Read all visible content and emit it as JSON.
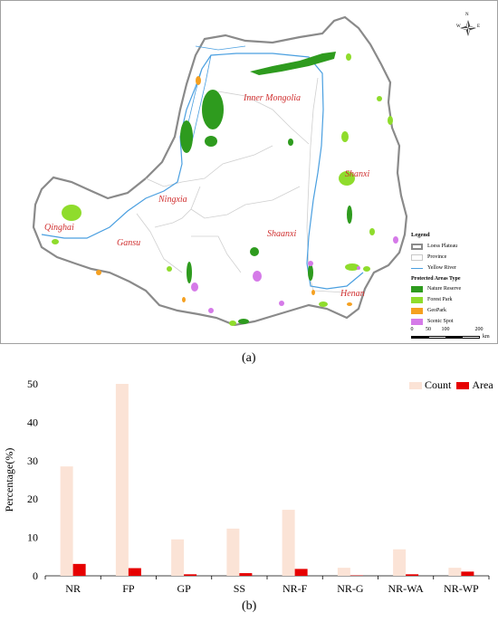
{
  "panel_a": {
    "label": "(a)",
    "provinces": [
      "Inner Mongolia",
      "Shanxi",
      "Ningxia",
      "Qinghai",
      "Gansu",
      "Shaanxi",
      "Henan"
    ],
    "compass": {
      "n": "N",
      "w": "W",
      "e": "E"
    },
    "legend": {
      "title": "Legend",
      "items": [
        {
          "label": "Loess Plateau",
          "kind": "plateau"
        },
        {
          "label": "Province",
          "kind": "province"
        },
        {
          "label": "Yellow River",
          "kind": "river"
        }
      ],
      "subtitle": "Protected Areas Type",
      "types": [
        {
          "label": "Nature Reserve",
          "color": "#2e9b1e"
        },
        {
          "label": "Forest Park",
          "color": "#8fdc2c"
        },
        {
          "label": "GeoPark",
          "color": "#f5a020"
        },
        {
          "label": "Scenic Spot",
          "color": "#d57ae8"
        }
      ]
    },
    "scale": {
      "ticks": [
        "0",
        "50",
        "100",
        "200"
      ],
      "unit": "km"
    }
  },
  "panel_b": {
    "label": "(b)"
  },
  "chart_data": {
    "type": "bar",
    "categories": [
      "NR",
      "FP",
      "GP",
      "SS",
      "NR-F",
      "NR-G",
      "NR-WA",
      "NR-WP"
    ],
    "series": [
      {
        "name": "Count",
        "values": [
          28.5,
          50,
          9.5,
          12.3,
          17.2,
          2.1,
          6.9,
          2.1
        ],
        "color": "#fbe3d6"
      },
      {
        "name": "Area",
        "values": [
          3.1,
          2.0,
          0.4,
          0.7,
          1.8,
          0.1,
          0.4,
          1.1
        ],
        "color": "#e60000"
      }
    ],
    "xlabel": "",
    "ylabel": "Percentage(%)",
    "ylim": [
      0,
      50
    ],
    "yticks": [
      "0",
      "10",
      "20",
      "30",
      "40",
      "50"
    ],
    "grid": false,
    "legend_position": "top-right"
  }
}
